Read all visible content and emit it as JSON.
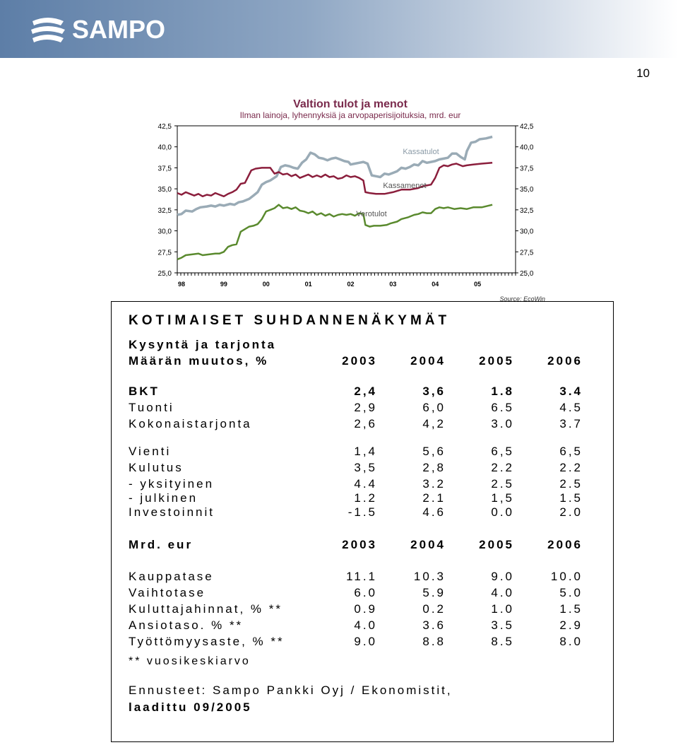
{
  "header": {
    "logo_text": "SAMPO",
    "page_number": "10"
  },
  "chart_data": {
    "type": "line",
    "title": "Valtion tulot ja menot",
    "subtitle": "Ilman lainoja, lyhennyksiä ja arvopaperisijoituksia, mrd. eur",
    "source": "Source: EcoWin",
    "x_ticks": [
      "98",
      "99",
      "00",
      "01",
      "02",
      "03",
      "04",
      "05"
    ],
    "y_ticks": [
      "25,0",
      "27,5",
      "30,0",
      "32,5",
      "35,0",
      "37,5",
      "40,0",
      "42,5"
    ],
    "ylim": [
      25,
      42.5
    ],
    "xlim": [
      1998,
      2006
    ],
    "colors": {
      "kassatulot": "#9aabb6",
      "kassamenot": "#8b1e3c",
      "verotulot": "#5a8a2e"
    },
    "series": [
      {
        "name": "Kassatulot",
        "points": [
          [
            1998.0,
            31.9
          ],
          [
            1998.1,
            32.0
          ],
          [
            1998.2,
            32.4
          ],
          [
            1998.35,
            32.3
          ],
          [
            1998.45,
            32.6
          ],
          [
            1998.55,
            32.8
          ],
          [
            1998.7,
            32.9
          ],
          [
            1998.8,
            33.0
          ],
          [
            1998.9,
            32.9
          ],
          [
            1999.0,
            33.1
          ],
          [
            1999.1,
            33.0
          ],
          [
            1999.25,
            33.2
          ],
          [
            1999.35,
            33.1
          ],
          [
            1999.45,
            33.4
          ],
          [
            1999.55,
            33.5
          ],
          [
            1999.7,
            33.8
          ],
          [
            1999.8,
            34.2
          ],
          [
            1999.9,
            34.6
          ],
          [
            2000.0,
            35.5
          ],
          [
            2000.1,
            35.8
          ],
          [
            2000.2,
            36.0
          ],
          [
            2000.35,
            36.5
          ],
          [
            2000.45,
            37.6
          ],
          [
            2000.55,
            37.8
          ],
          [
            2000.65,
            37.7
          ],
          [
            2000.75,
            37.5
          ],
          [
            2000.85,
            37.4
          ],
          [
            2000.95,
            38.1
          ],
          [
            2001.05,
            38.5
          ],
          [
            2001.15,
            39.3
          ],
          [
            2001.25,
            39.1
          ],
          [
            2001.35,
            38.7
          ],
          [
            2001.45,
            38.6
          ],
          [
            2001.55,
            38.4
          ],
          [
            2001.65,
            38.6
          ],
          [
            2001.75,
            38.7
          ],
          [
            2001.85,
            38.5
          ],
          [
            2001.95,
            38.3
          ],
          [
            2002.05,
            38.2
          ],
          [
            2002.1,
            37.9
          ],
          [
            2002.2,
            38.0
          ],
          [
            2002.3,
            38.1
          ],
          [
            2002.4,
            38.2
          ],
          [
            2002.5,
            38.0
          ],
          [
            2002.6,
            36.6
          ],
          [
            2002.7,
            36.5
          ],
          [
            2002.8,
            36.4
          ],
          [
            2002.9,
            36.8
          ],
          [
            2003.0,
            36.7
          ],
          [
            2003.1,
            36.9
          ],
          [
            2003.2,
            37.1
          ],
          [
            2003.3,
            37.5
          ],
          [
            2003.4,
            37.4
          ],
          [
            2003.5,
            37.6
          ],
          [
            2003.6,
            37.9
          ],
          [
            2003.7,
            37.8
          ],
          [
            2003.8,
            38.3
          ],
          [
            2003.9,
            38.1
          ],
          [
            2004.0,
            38.2
          ],
          [
            2004.1,
            38.3
          ],
          [
            2004.2,
            38.5
          ],
          [
            2004.3,
            38.6
          ],
          [
            2004.4,
            38.7
          ],
          [
            2004.5,
            39.2
          ],
          [
            2004.6,
            39.2
          ],
          [
            2004.7,
            38.8
          ],
          [
            2004.8,
            38.5
          ],
          [
            2004.85,
            39.5
          ],
          [
            2004.95,
            40.5
          ],
          [
            2005.05,
            40.6
          ],
          [
            2005.15,
            40.9
          ],
          [
            2005.3,
            41.0
          ],
          [
            2005.45,
            41.2
          ]
        ]
      },
      {
        "name": "Kassamenot",
        "points": [
          [
            1998.0,
            34.5
          ],
          [
            1998.1,
            34.3
          ],
          [
            1998.2,
            34.6
          ],
          [
            1998.3,
            34.4
          ],
          [
            1998.4,
            34.2
          ],
          [
            1998.5,
            34.4
          ],
          [
            1998.6,
            34.1
          ],
          [
            1998.7,
            34.3
          ],
          [
            1998.8,
            34.2
          ],
          [
            1998.9,
            34.5
          ],
          [
            1999.0,
            34.3
          ],
          [
            1999.1,
            34.1
          ],
          [
            1999.2,
            34.4
          ],
          [
            1999.3,
            34.6
          ],
          [
            1999.4,
            34.9
          ],
          [
            1999.5,
            35.6
          ],
          [
            1999.6,
            35.7
          ],
          [
            1999.75,
            37.2
          ],
          [
            1999.85,
            37.4
          ],
          [
            2000.0,
            37.5
          ],
          [
            2000.1,
            37.5
          ],
          [
            2000.2,
            37.5
          ],
          [
            2000.3,
            36.8
          ],
          [
            2000.4,
            37.0
          ],
          [
            2000.5,
            36.7
          ],
          [
            2000.6,
            36.8
          ],
          [
            2000.7,
            36.5
          ],
          [
            2000.8,
            36.7
          ],
          [
            2000.9,
            36.3
          ],
          [
            2001.0,
            36.5
          ],
          [
            2001.1,
            36.7
          ],
          [
            2001.2,
            36.4
          ],
          [
            2001.3,
            36.6
          ],
          [
            2001.4,
            36.4
          ],
          [
            2001.5,
            36.7
          ],
          [
            2001.6,
            36.4
          ],
          [
            2001.7,
            36.5
          ],
          [
            2001.8,
            36.2
          ],
          [
            2001.9,
            36.3
          ],
          [
            2002.0,
            36.6
          ],
          [
            2002.1,
            36.4
          ],
          [
            2002.2,
            36.5
          ],
          [
            2002.3,
            36.3
          ],
          [
            2002.4,
            36.0
          ],
          [
            2002.45,
            34.6
          ],
          [
            2002.55,
            34.5
          ],
          [
            2002.7,
            34.4
          ],
          [
            2002.9,
            34.4
          ],
          [
            2003.1,
            34.6
          ],
          [
            2003.3,
            34.9
          ],
          [
            2003.5,
            34.9
          ],
          [
            2003.7,
            35.1
          ],
          [
            2003.8,
            35.3
          ],
          [
            2003.9,
            35.4
          ],
          [
            2004.0,
            35.5
          ],
          [
            2004.1,
            36.3
          ],
          [
            2004.2,
            37.5
          ],
          [
            2004.3,
            37.8
          ],
          [
            2004.4,
            37.7
          ],
          [
            2004.5,
            37.9
          ],
          [
            2004.6,
            38.0
          ],
          [
            2004.75,
            37.7
          ],
          [
            2004.85,
            37.8
          ],
          [
            2005.0,
            37.9
          ],
          [
            2005.2,
            38.0
          ],
          [
            2005.45,
            38.1
          ]
        ]
      },
      {
        "name": "Verotulot",
        "points": [
          [
            1998.0,
            26.6
          ],
          [
            1998.1,
            26.8
          ],
          [
            1998.2,
            27.1
          ],
          [
            1998.35,
            27.2
          ],
          [
            1998.5,
            27.3
          ],
          [
            1998.6,
            27.1
          ],
          [
            1998.75,
            27.2
          ],
          [
            1998.9,
            27.3
          ],
          [
            1999.0,
            27.3
          ],
          [
            1999.1,
            27.5
          ],
          [
            1999.2,
            28.1
          ],
          [
            1999.3,
            28.3
          ],
          [
            1999.4,
            28.4
          ],
          [
            1999.5,
            29.9
          ],
          [
            1999.6,
            30.2
          ],
          [
            1999.7,
            30.5
          ],
          [
            1999.8,
            30.6
          ],
          [
            1999.9,
            30.8
          ],
          [
            2000.0,
            31.4
          ],
          [
            2000.1,
            32.3
          ],
          [
            2000.2,
            32.5
          ],
          [
            2000.3,
            32.7
          ],
          [
            2000.4,
            33.1
          ],
          [
            2000.5,
            32.7
          ],
          [
            2000.6,
            32.8
          ],
          [
            2000.7,
            32.6
          ],
          [
            2000.8,
            32.8
          ],
          [
            2000.9,
            32.4
          ],
          [
            2001.0,
            32.3
          ],
          [
            2001.1,
            32.1
          ],
          [
            2001.2,
            32.3
          ],
          [
            2001.3,
            31.9
          ],
          [
            2001.4,
            32.1
          ],
          [
            2001.5,
            31.8
          ],
          [
            2001.6,
            32.0
          ],
          [
            2001.7,
            31.7
          ],
          [
            2001.8,
            31.9
          ],
          [
            2001.9,
            32.0
          ],
          [
            2002.0,
            31.9
          ],
          [
            2002.1,
            32.0
          ],
          [
            2002.2,
            31.8
          ],
          [
            2002.3,
            32.1
          ],
          [
            2002.4,
            32.0
          ],
          [
            2002.45,
            30.7
          ],
          [
            2002.55,
            30.5
          ],
          [
            2002.65,
            30.6
          ],
          [
            2002.8,
            30.6
          ],
          [
            2002.95,
            30.7
          ],
          [
            2003.05,
            30.9
          ],
          [
            2003.2,
            31.1
          ],
          [
            2003.3,
            31.4
          ],
          [
            2003.45,
            31.6
          ],
          [
            2003.6,
            31.9
          ],
          [
            2003.7,
            32.0
          ],
          [
            2003.8,
            32.2
          ],
          [
            2003.9,
            32.1
          ],
          [
            2004.0,
            32.1
          ],
          [
            2004.1,
            32.6
          ],
          [
            2004.2,
            32.8
          ],
          [
            2004.3,
            32.7
          ],
          [
            2004.4,
            32.8
          ],
          [
            2004.55,
            32.6
          ],
          [
            2004.7,
            32.7
          ],
          [
            2004.85,
            32.6
          ],
          [
            2005.0,
            32.8
          ],
          [
            2005.2,
            32.8
          ],
          [
            2005.45,
            33.1
          ]
        ]
      }
    ]
  },
  "table": {
    "title": "KOTIMAISET SUHDANNENÄKYMÄT",
    "subtitle": "Kysyntä ja tarjonta",
    "section1": {
      "header_label": "Määrän muutos, %",
      "years": [
        "2003",
        "2004",
        "2005",
        "2006"
      ],
      "rows": [
        {
          "label": "BKT",
          "values": [
            "2,4",
            "3,6",
            "1.8",
            "3.4"
          ]
        },
        {
          "label": "Tuonti",
          "values": [
            "2,9",
            "6,0",
            "6.5",
            "4.5"
          ]
        },
        {
          "label": "Kokonaistarjonta",
          "values": [
            "2,6",
            "4,2",
            "3.0",
            "3.7"
          ]
        },
        {
          "label": "Vienti",
          "values": [
            "1,4",
            "5,6",
            "6,5",
            "6,5"
          ]
        },
        {
          "label": "Kulutus",
          "values": [
            "3,5",
            "2,8",
            "2.2",
            "2.2"
          ]
        },
        {
          "label": "- yksityinen",
          "values": [
            "4.4",
            "3.2",
            "2.5",
            "2.5"
          ]
        },
        {
          "label": "- julkinen",
          "values": [
            "1.2",
            "2.1",
            "1,5",
            "1.5"
          ]
        },
        {
          "label": "Investoinnit",
          "values": [
            "-1.5",
            "4.6",
            "0.0",
            "2.0"
          ]
        }
      ]
    },
    "section2": {
      "header_label": "Mrd. eur",
      "years": [
        "2003",
        "2004",
        "2005",
        "2006"
      ],
      "rows": [
        {
          "label": "Kauppatase",
          "values": [
            "11.1",
            "10.3",
            "9.0",
            "10.0"
          ]
        },
        {
          "label": "Vaihtotase",
          "values": [
            "6.0",
            "5.9",
            "4.0",
            "5.0"
          ]
        },
        {
          "label": "Kuluttajahinnat, % **",
          "values": [
            "0.9",
            "0.2",
            "1.0",
            "1.5"
          ]
        },
        {
          "label": "Ansiotaso. % **",
          "values": [
            "4.0",
            "3.6",
            "3.5",
            "2.9"
          ]
        },
        {
          "label": "Työttömyysaste, % **",
          "values": [
            "9.0",
            "8.8",
            "8.5",
            "8.0"
          ]
        }
      ]
    },
    "footnote": "**  vuosikeskiarvo",
    "source_line": "Ennusteet: Sampo Pankki Oyj / Ekonomistit,",
    "date_line": "laadittu 09/2005"
  }
}
